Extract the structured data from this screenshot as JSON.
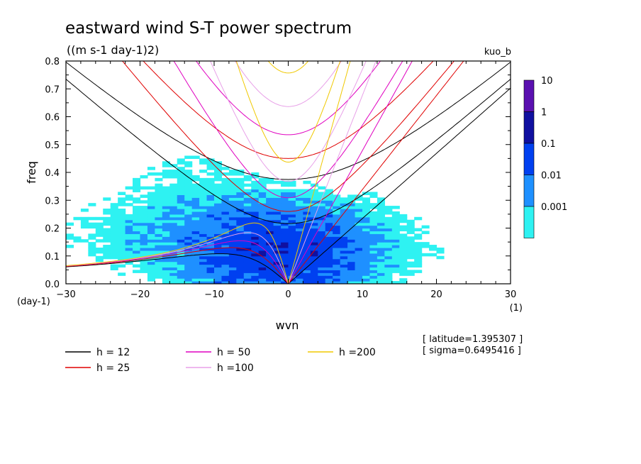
{
  "chart_data": {
    "type": "heatmap",
    "title": "eastward wind S-T power spectrum",
    "subtitle": "((m s-1 day-1)2)",
    "tag": "kuo_b",
    "xlabel": "wvn",
    "ylabel": "freq",
    "x_unit": "(1)",
    "y_unit": "(day-1)",
    "xlim": [
      -30,
      30
    ],
    "ylim": [
      0,
      0.8
    ],
    "x_ticks": [
      "-30",
      "-20",
      "-10",
      "0",
      "10",
      "20",
      "30"
    ],
    "y_ticks": [
      "0.0",
      "0.1",
      "0.2",
      "0.3",
      "0.4",
      "0.5",
      "0.6",
      "0.7",
      "0.8"
    ],
    "colorbar": {
      "labels": [
        "10",
        "1",
        "0.1",
        "0.01",
        "0.001"
      ],
      "colors": [
        "#5a10b0",
        "#1010a0",
        "#0040f0",
        "#1e90ff",
        "#2ef2f2"
      ]
    },
    "contour_levels": [
      {
        "label": "0.001",
        "color": "#2ef2f2"
      },
      {
        "label": "0.01",
        "color": "#1e90ff"
      },
      {
        "label": "0.1",
        "color": "#0040f0"
      },
      {
        "label": "1",
        "color": "#1010a0"
      },
      {
        "label": "10",
        "color": "#5a10b0"
      }
    ],
    "dispersion_curves": [
      {
        "name": "h = 12",
        "h": 12,
        "color": "#000000"
      },
      {
        "name": "h = 25",
        "h": 25,
        "color": "#e00000"
      },
      {
        "name": "h = 50",
        "h": 50,
        "color": "#e000c0"
      },
      {
        "name": "h =100",
        "h": 100,
        "color": "#e8a0e8"
      },
      {
        "name": "h =200",
        "h": 200,
        "color": "#f0c800"
      }
    ],
    "legend_placement": "bottom",
    "notes": [
      "[ latitude=1.395307 ]",
      "[ sigma=0.6495416 ]"
    ]
  }
}
